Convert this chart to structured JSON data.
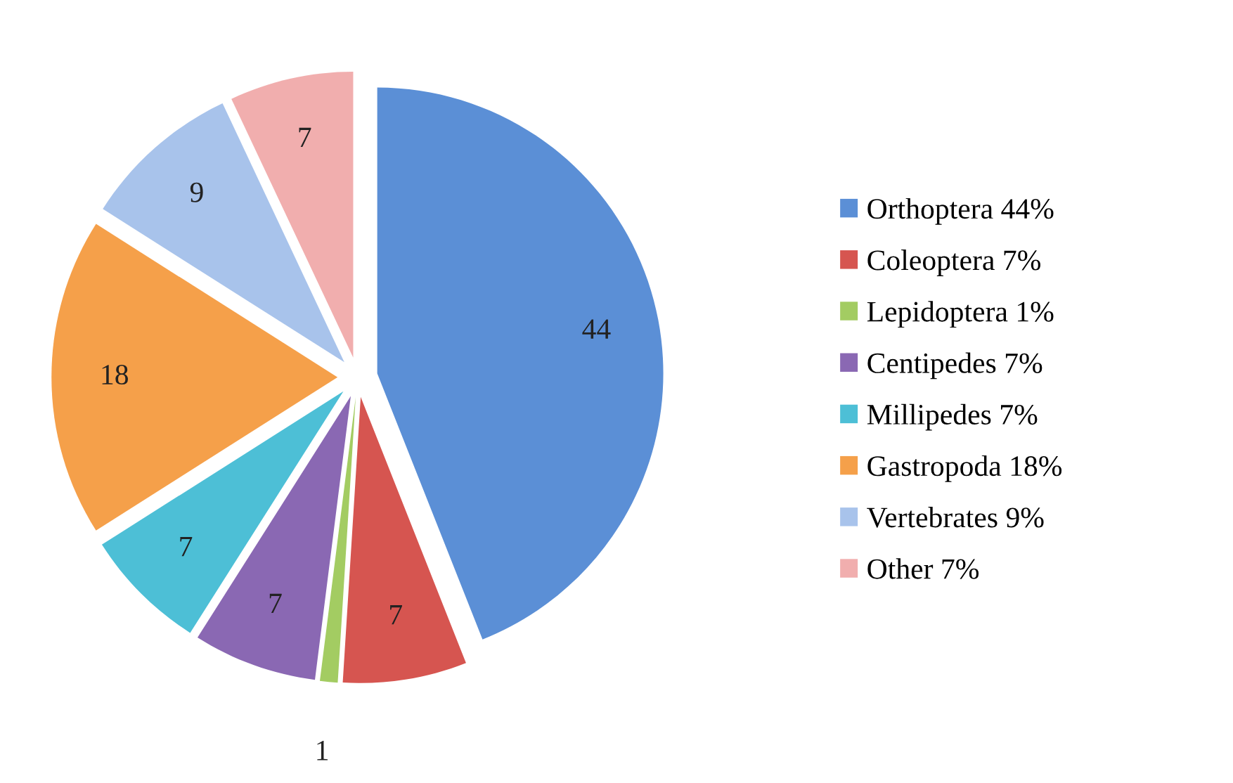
{
  "chart_data": {
    "type": "pie",
    "categories": [
      "Orthoptera 44%",
      "Coleoptera 7%",
      "Lepidoptera 1%",
      "Centipedes 7%",
      "Millipedes 7%",
      "Gastropoda 18%",
      "Vertebrates 9%",
      "Other 7%"
    ],
    "values": [
      44,
      7,
      1,
      7,
      7,
      18,
      9,
      7
    ],
    "colors": [
      "#5b8fd6",
      "#d65550",
      "#a3cc62",
      "#8a68b3",
      "#4dbfd6",
      "#f5a04a",
      "#a8c3eb",
      "#f1aeae"
    ],
    "data_labels": true,
    "legend": "right"
  }
}
